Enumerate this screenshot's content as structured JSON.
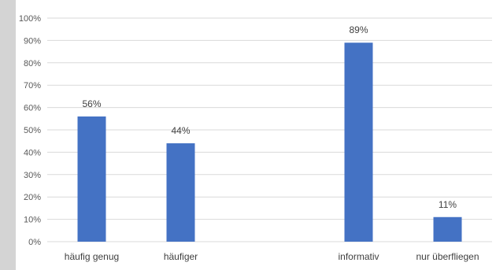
{
  "chart_data": {
    "type": "bar",
    "title": "",
    "xlabel": "",
    "ylabel": "",
    "ylim": [
      0,
      100
    ],
    "yticks": [
      "0%",
      "10%",
      "20%",
      "30%",
      "40%",
      "50%",
      "60%",
      "70%",
      "80%",
      "90%",
      "100%"
    ],
    "grid": true,
    "legend": "none",
    "bar_color": "#4472c4",
    "categories": [
      "häufig genug",
      "häufiger",
      "",
      "informativ",
      "nur überfliegen"
    ],
    "values": [
      56,
      44,
      null,
      89,
      11
    ],
    "data_labels": [
      "56%",
      "44%",
      "",
      "89%",
      "11%"
    ]
  }
}
